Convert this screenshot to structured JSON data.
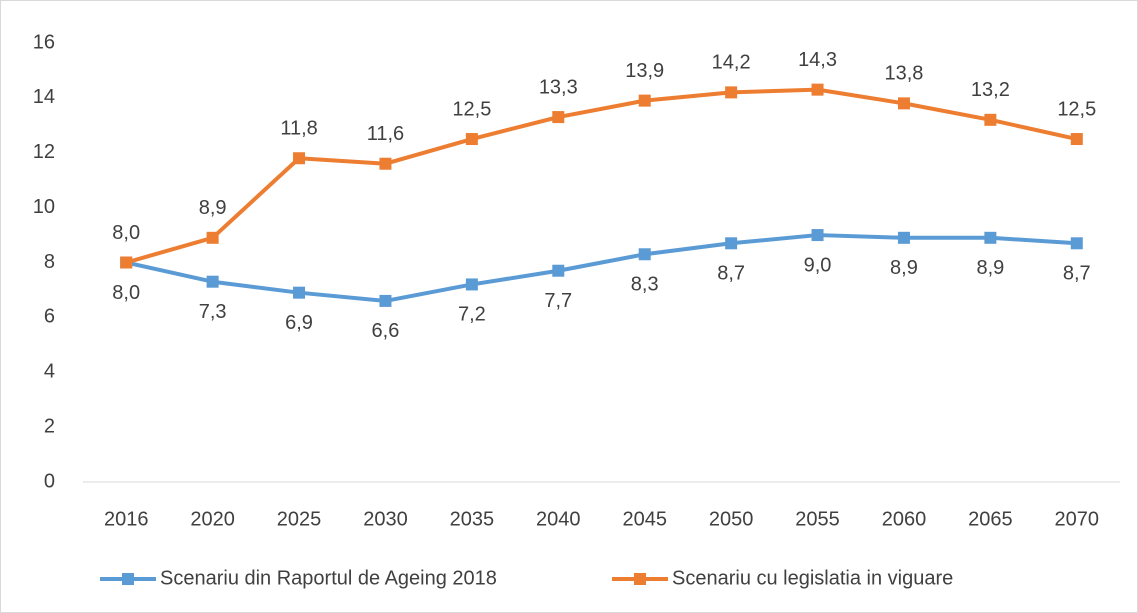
{
  "chart_data": {
    "type": "line",
    "categories": [
      "2016",
      "2020",
      "2025",
      "2030",
      "2035",
      "2040",
      "2045",
      "2050",
      "2055",
      "2060",
      "2065",
      "2070"
    ],
    "series": [
      {
        "name": "Scenariu din Raportul de Ageing 2018",
        "color": "#5b9bd5",
        "values": [
          8.0,
          7.3,
          6.9,
          6.6,
          7.2,
          7.7,
          8.3,
          8.7,
          9.0,
          8.9,
          8.9,
          8.7
        ],
        "value_labels": [
          "8,0",
          "7,3",
          "6,9",
          "6,6",
          "7,2",
          "7,7",
          "8,3",
          "8,7",
          "9,0",
          "8,9",
          "8,9",
          "8,7"
        ]
      },
      {
        "name": "Scenariu cu legislatia in viguare",
        "color": "#ed7d31",
        "values": [
          8.0,
          8.9,
          11.8,
          11.6,
          12.5,
          13.3,
          13.9,
          14.2,
          14.3,
          13.8,
          13.2,
          12.5
        ],
        "value_labels": [
          "8,0",
          "8,9",
          "11,8",
          "11,6",
          "12,5",
          "13,3",
          "13,9",
          "14,2",
          "14,3",
          "13,8",
          "13,2",
          "12,5"
        ]
      }
    ],
    "ylim": [
      0,
      16
    ],
    "yticks": [
      0,
      2,
      4,
      6,
      8,
      10,
      12,
      14,
      16
    ],
    "grid": false,
    "legend": "bottom"
  }
}
